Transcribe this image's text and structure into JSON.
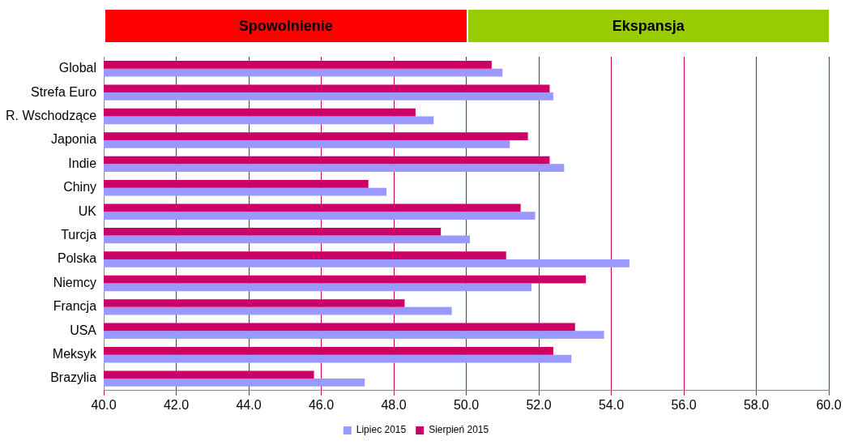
{
  "chart_data": {
    "type": "bar",
    "orientation": "horizontal",
    "categories": [
      "Global",
      "Strefa Euro",
      "R. Wschodzące",
      "Japonia",
      "Indie",
      "Chiny",
      "UK",
      "Turcja",
      "Polska",
      "Niemcy",
      "Francja",
      "USA",
      "Meksyk",
      "Brazylia"
    ],
    "series": [
      {
        "name": "Lipiec 2015",
        "color": "#9999ff",
        "values": [
          51.0,
          52.4,
          49.1,
          51.2,
          52.7,
          47.8,
          51.9,
          50.1,
          54.5,
          51.8,
          49.6,
          53.8,
          52.9,
          47.2
        ]
      },
      {
        "name": "Sierpień 2015",
        "color": "#cc0066",
        "values": [
          50.7,
          52.3,
          48.6,
          51.7,
          52.3,
          47.3,
          51.5,
          49.3,
          51.1,
          53.3,
          48.3,
          53.0,
          52.4,
          45.8
        ]
      }
    ],
    "xlim": [
      40,
      60
    ],
    "xticks": [
      {
        "value": 40,
        "label": "40.0"
      },
      {
        "value": 42,
        "label": "42.0"
      },
      {
        "value": 44,
        "label": "44.0"
      },
      {
        "value": 46,
        "label": "46.0"
      },
      {
        "value": 48,
        "label": "48.0"
      },
      {
        "value": 50,
        "label": "50.0"
      },
      {
        "value": 52,
        "label": "52.0"
      },
      {
        "value": 54,
        "label": "54.0"
      },
      {
        "value": 56,
        "label": "56.0"
      },
      {
        "value": 58,
        "label": "58.0"
      },
      {
        "value": 60,
        "label": "60.0"
      }
    ],
    "annotations": [
      "Spowolnienie",
      "Ekspansja"
    ],
    "grid": "x",
    "legend": "bottom"
  }
}
